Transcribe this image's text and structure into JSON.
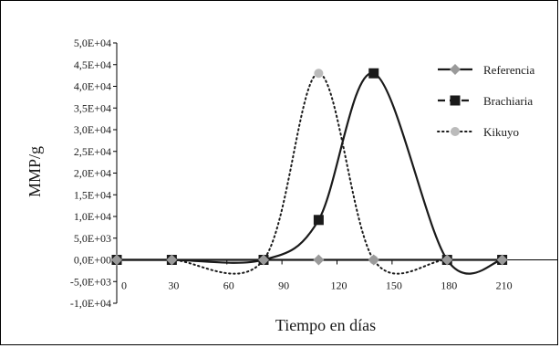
{
  "chart_data": {
    "type": "line",
    "title": "",
    "xlabel": "Tiempo en días",
    "ylabel": "MMP/g",
    "x_ticks": [
      "0",
      "30",
      "60",
      "90",
      "120",
      "150",
      "180",
      "210"
    ],
    "y_ticks": [
      "5,0E+04",
      "4,5E+04",
      "4,0E+04",
      "3,5E+04",
      "3,0E+04",
      "2,5E+04",
      "2,0E+04",
      "1,5E+04",
      "1,0E+04",
      "5,0E+03",
      "0,0E+00",
      "-5,0E+03",
      "-1,0E+04"
    ],
    "xlim": [
      0,
      240
    ],
    "ylim": [
      -10000,
      50000
    ],
    "legend": "right",
    "series": [
      {
        "name": "Referencia",
        "x": [
          0,
          30,
          80,
          110,
          140,
          180,
          210
        ],
        "values": [
          0,
          0,
          0,
          0,
          0,
          0,
          0
        ],
        "color": "#9a9a9a",
        "marker": "diamond",
        "line": "solid"
      },
      {
        "name": "Brachiaria",
        "x": [
          0,
          30,
          80,
          110,
          140,
          180,
          210
        ],
        "values": [
          0,
          0,
          0,
          9200,
          43000,
          0,
          0
        ],
        "color": "#1a1a1a",
        "marker": "square",
        "line": "solid"
      },
      {
        "name": "Kikuyo",
        "x": [
          0,
          30,
          80,
          110,
          140,
          180,
          210
        ],
        "values": [
          0,
          0,
          0,
          43000,
          0,
          0,
          0
        ],
        "color": "#bbbbbb",
        "marker": "circle",
        "line": "dotted"
      }
    ]
  }
}
